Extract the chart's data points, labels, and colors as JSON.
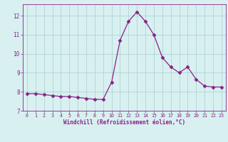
{
  "x": [
    0,
    1,
    2,
    3,
    4,
    5,
    6,
    7,
    8,
    9,
    10,
    11,
    12,
    13,
    14,
    15,
    16,
    17,
    18,
    19,
    20,
    21,
    22,
    23
  ],
  "y": [
    7.9,
    7.9,
    7.85,
    7.8,
    7.75,
    7.75,
    7.7,
    7.65,
    7.6,
    7.6,
    8.5,
    10.7,
    11.7,
    12.2,
    11.7,
    11.0,
    9.8,
    9.3,
    9.0,
    9.3,
    8.65,
    8.3,
    8.25,
    8.25
  ],
  "line_color": "#882288",
  "marker": "D",
  "marker_size": 2.5,
  "bg_color": "#d8f0f0",
  "grid_color": "#aacece",
  "xlabel": "Windchill (Refroidissement éolien,°C)",
  "xlabel_color": "#882288",
  "tick_color": "#882288",
  "ylim": [
    7.0,
    12.6
  ],
  "xlim": [
    -0.5,
    23.5
  ],
  "yticks": [
    7,
    8,
    9,
    10,
    11,
    12
  ],
  "xticks": [
    0,
    1,
    2,
    3,
    4,
    5,
    6,
    7,
    8,
    9,
    10,
    11,
    12,
    13,
    14,
    15,
    16,
    17,
    18,
    19,
    20,
    21,
    22,
    23
  ]
}
